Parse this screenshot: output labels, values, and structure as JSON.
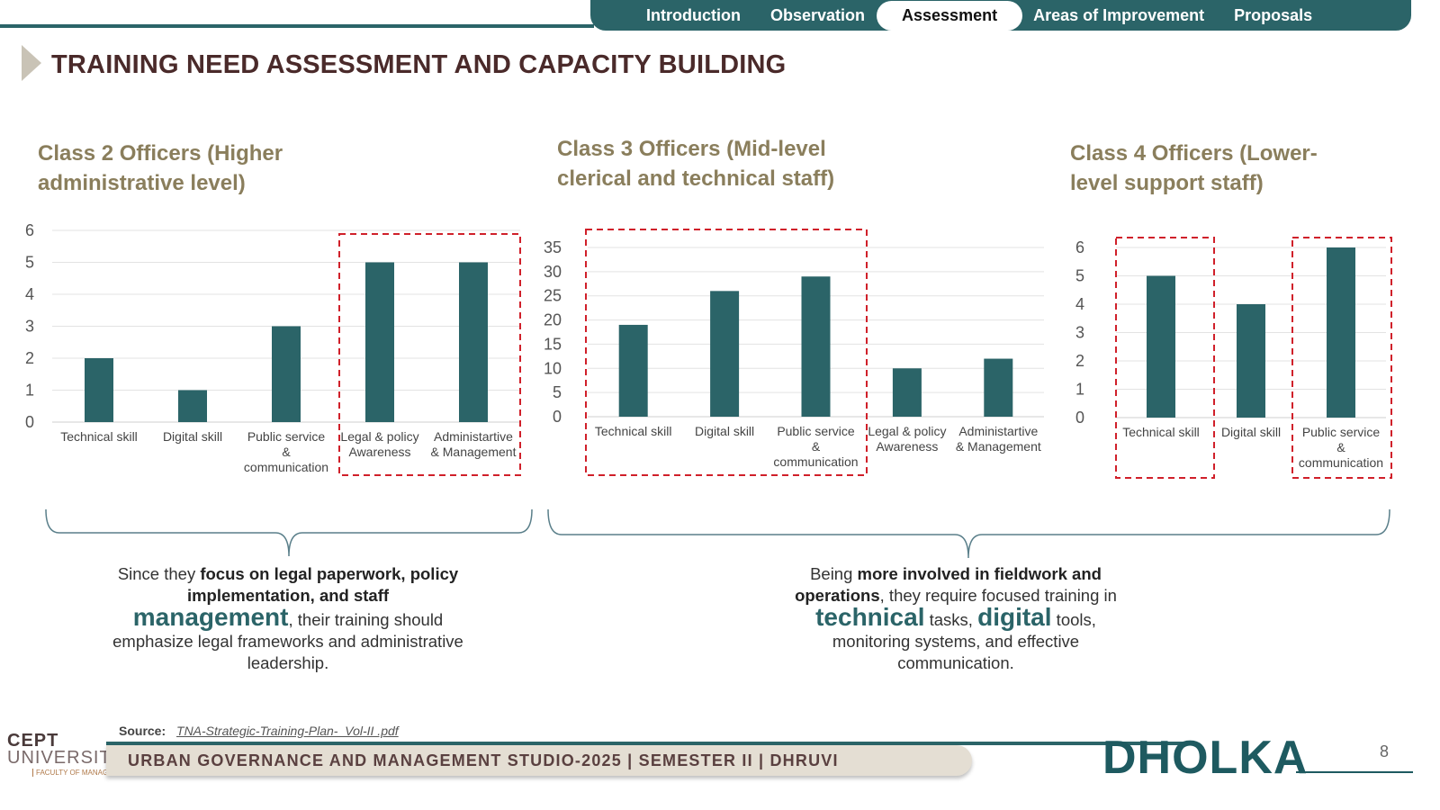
{
  "nav": {
    "items": [
      "Introduction",
      "Observation",
      "Assessment",
      "Areas of Improvement",
      "Proposals"
    ],
    "active": "Assessment"
  },
  "page_title": "TRAINING NEED ASSESSMENT AND CAPACITY BUILDING",
  "colors": {
    "bar": "#2b6468",
    "highlight": "#d0202a",
    "accent": "#2b6468",
    "title": "#8a7e5c"
  },
  "chart_data": [
    {
      "type": "bar",
      "title": "Class 2 Officers (Higher administrative level)",
      "categories": [
        "Technical skill",
        "Digital skill",
        "Public service & communication",
        "Legal & policy Awareness",
        "Administartive & Management"
      ],
      "values": [
        2,
        1,
        3,
        5,
        5
      ],
      "ylim": [
        0,
        6
      ],
      "yticks": [
        0,
        1,
        2,
        3,
        4,
        5,
        6
      ],
      "grid": true,
      "highlighted_categories": [
        "Legal & policy Awareness",
        "Administartive & Management"
      ]
    },
    {
      "type": "bar",
      "title": "Class 3 Officers (Mid-level clerical and technical staff)",
      "categories": [
        "Technical skill",
        "Digital skill",
        "Public service & communication",
        "Legal & policy Awareness",
        "Administartive & Management"
      ],
      "values": [
        19,
        26,
        29,
        10,
        12
      ],
      "ylim": [
        0,
        35
      ],
      "yticks": [
        0,
        5,
        10,
        15,
        20,
        25,
        30,
        35
      ],
      "grid": true,
      "highlighted_categories": [
        "Technical skill",
        "Digital skill",
        "Public service & communication"
      ]
    },
    {
      "type": "bar",
      "title": "Class 4 Officers (Lower-level support staff)",
      "categories": [
        "Technical skill",
        "Digital skill",
        "Public service & communication"
      ],
      "values": [
        5,
        4,
        6
      ],
      "ylim": [
        0,
        6
      ],
      "yticks": [
        0,
        1,
        2,
        3,
        4,
        5,
        6
      ],
      "grid": true,
      "highlighted_categories": [
        "Technical skill",
        "Public service & communication"
      ]
    }
  ],
  "notes": {
    "left": {
      "p1": "Since they ",
      "b1": "focus on legal paperwork, policy implementation, and staff",
      "big1": "management",
      "p2": ", their training should emphasize legal frameworks and administrative leadership."
    },
    "right": {
      "p1": "Being ",
      "b1": "more involved in fieldwork and operations",
      "p2": ", they require focused training in",
      "big1": "technical",
      "p3": " tasks, ",
      "big2": "digital",
      "p4": " tools, monitoring systems, and effective communication."
    }
  },
  "source": {
    "label": "Source:",
    "link": "TNA-Strategic-Training-Plan-_Vol-II .pdf"
  },
  "footer": {
    "text": "URBAN GOVERNANCE AND MANAGEMENT STUDIO-2025 | SEMESTER II | DHRUVI",
    "brand": "DHOLKA",
    "page": "8"
  },
  "logo": {
    "line1": "CEPT",
    "line2": "UNIVERSITY",
    "line3": "FACULTY OF MANAGEMENT"
  }
}
